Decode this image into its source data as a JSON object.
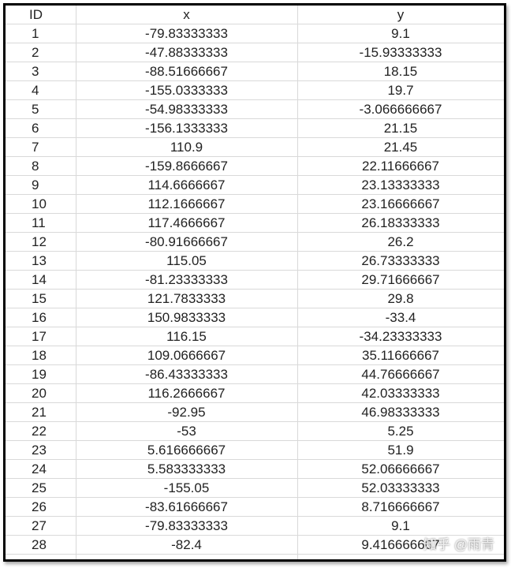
{
  "table": {
    "headers": [
      "ID",
      "x",
      "y"
    ],
    "rows": [
      [
        "1",
        "-79.83333333",
        "9.1"
      ],
      [
        "2",
        "-47.88333333",
        "-15.93333333"
      ],
      [
        "3",
        "-88.51666667",
        "18.15"
      ],
      [
        "4",
        "-155.0333333",
        "19.7"
      ],
      [
        "5",
        "-54.98333333",
        "-3.066666667"
      ],
      [
        "6",
        "-156.1333333",
        "21.15"
      ],
      [
        "7",
        "110.9",
        "21.45"
      ],
      [
        "8",
        "-159.8666667",
        "22.11666667"
      ],
      [
        "9",
        "114.6666667",
        "23.13333333"
      ],
      [
        "10",
        "112.1666667",
        "23.16666667"
      ],
      [
        "11",
        "117.4666667",
        "26.18333333"
      ],
      [
        "12",
        "-80.91666667",
        "26.2"
      ],
      [
        "13",
        "115.05",
        "26.73333333"
      ],
      [
        "14",
        "-81.23333333",
        "29.71666667"
      ],
      [
        "15",
        "121.7833333",
        "29.8"
      ],
      [
        "16",
        "150.9833333",
        "-33.4"
      ],
      [
        "17",
        "116.15",
        "-34.23333333"
      ],
      [
        "18",
        "109.0666667",
        "35.11666667"
      ],
      [
        "19",
        "-86.43333333",
        "44.76666667"
      ],
      [
        "20",
        "116.2666667",
        "42.03333333"
      ],
      [
        "21",
        "-92.95",
        "46.98333333"
      ],
      [
        "22",
        "-53",
        "5.25"
      ],
      [
        "23",
        "5.616666667",
        "51.9"
      ],
      [
        "24",
        "5.583333333",
        "52.06666667"
      ],
      [
        "25",
        "-155.05",
        "52.03333333"
      ],
      [
        "26",
        "-83.61666667",
        "8.716666667"
      ],
      [
        "27",
        "-79.83333333",
        "9.1"
      ],
      [
        "28",
        "-82.4",
        "9.416666667"
      ]
    ]
  },
  "watermark": "知乎 @雨青"
}
